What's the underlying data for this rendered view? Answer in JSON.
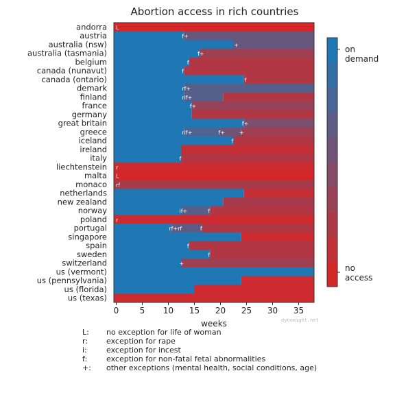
{
  "chart_data": {
    "type": "heatmap",
    "title": "Abortion access in rich countries",
    "xlabel": "weeks",
    "x_ticks": [
      0,
      5,
      10,
      15,
      20,
      25,
      30,
      35
    ],
    "xlim": [
      0,
      38.5
    ],
    "colorbar": {
      "top_label": "on demand",
      "bottom_label": "no access",
      "top_color": "#1f77b4",
      "bottom_color": "#d62728"
    },
    "rows": [
      {
        "country": "andorra",
        "segments": [
          {
            "from": 0,
            "to": 38.5,
            "level": 0
          }
        ],
        "marks": [
          {
            "at": 0,
            "text": "L"
          }
        ]
      },
      {
        "country": "austria",
        "segments": [
          {
            "from": 0,
            "to": 13,
            "level": 1
          },
          {
            "from": 13,
            "to": 38.5,
            "level": 0.6
          }
        ],
        "marks": [
          {
            "at": 13,
            "text": "f+"
          }
        ]
      },
      {
        "country": "australia (nsw)",
        "segments": [
          {
            "from": 0,
            "to": 22.5,
            "level": 1
          },
          {
            "from": 22.5,
            "to": 38.5,
            "level": 0.6
          }
        ],
        "marks": [
          {
            "at": 23,
            "text": "+"
          }
        ]
      },
      {
        "country": "australia (tasmania)",
        "segments": [
          {
            "from": 0,
            "to": 16,
            "level": 1
          },
          {
            "from": 16,
            "to": 38.5,
            "level": 0.3
          }
        ],
        "marks": [
          {
            "at": 16,
            "text": "f+"
          }
        ]
      },
      {
        "country": "belgium",
        "segments": [
          {
            "from": 0,
            "to": 14,
            "level": 1
          },
          {
            "from": 14,
            "to": 38.5,
            "level": 0.2
          }
        ],
        "marks": [
          {
            "at": 14,
            "text": "f"
          }
        ]
      },
      {
        "country": "canada (nunavut)",
        "segments": [
          {
            "from": 0,
            "to": 13,
            "level": 1
          },
          {
            "from": 13,
            "to": 38.5,
            "level": 0.2
          }
        ],
        "marks": [
          {
            "at": 13,
            "text": "f"
          }
        ]
      },
      {
        "country": "canada (ontario)",
        "segments": [
          {
            "from": 0,
            "to": 24.5,
            "level": 1
          },
          {
            "from": 24.5,
            "to": 38.5,
            "level": 0.2
          }
        ],
        "marks": [
          {
            "at": 25,
            "text": "f"
          }
        ]
      },
      {
        "country": "demark",
        "segments": [
          {
            "from": 0,
            "to": 13,
            "level": 1
          },
          {
            "from": 13,
            "to": 38.5,
            "level": 0.7
          }
        ],
        "marks": [
          {
            "at": 13,
            "text": "rf+"
          }
        ]
      },
      {
        "country": "finland",
        "segments": [
          {
            "from": 0,
            "to": 13,
            "level": 1
          },
          {
            "from": 13,
            "to": 20.5,
            "level": 0.7
          },
          {
            "from": 20.5,
            "to": 38.5,
            "level": 0.2
          }
        ],
        "marks": [
          {
            "at": 13,
            "text": "rif+"
          }
        ]
      },
      {
        "country": "france",
        "segments": [
          {
            "from": 0,
            "to": 14.5,
            "level": 1
          },
          {
            "from": 14.5,
            "to": 38.5,
            "level": 0.35
          }
        ],
        "marks": [
          {
            "at": 14.5,
            "text": "f+"
          }
        ]
      },
      {
        "country": "germany",
        "segments": [
          {
            "from": 0,
            "to": 14.5,
            "level": 1
          },
          {
            "from": 14.5,
            "to": 38.5,
            "level": 0.2
          }
        ],
        "marks": []
      },
      {
        "country": "great britain",
        "segments": [
          {
            "from": 0,
            "to": 24.5,
            "level": 1
          },
          {
            "from": 24.5,
            "to": 38.5,
            "level": 0.5
          }
        ],
        "marks": [
          {
            "at": 24.5,
            "text": "f+"
          }
        ]
      },
      {
        "country": "greece",
        "segments": [
          {
            "from": 0,
            "to": 13,
            "level": 1
          },
          {
            "from": 13,
            "to": 20,
            "level": 0.75
          },
          {
            "from": 20,
            "to": 24,
            "level": 0.55
          },
          {
            "from": 24,
            "to": 38.5,
            "level": 0.3
          }
        ],
        "marks": [
          {
            "at": 13,
            "text": "rif+"
          },
          {
            "at": 20,
            "text": "f+"
          },
          {
            "at": 24,
            "text": "+"
          }
        ]
      },
      {
        "country": "iceland",
        "segments": [
          {
            "from": 0,
            "to": 22.5,
            "level": 1
          },
          {
            "from": 22.5,
            "to": 38.5,
            "level": 0.2
          }
        ],
        "marks": [
          {
            "at": 22.5,
            "text": "f"
          }
        ]
      },
      {
        "country": "ireland",
        "segments": [
          {
            "from": 0,
            "to": 12.5,
            "level": 1
          },
          {
            "from": 12.5,
            "to": 38.5,
            "level": 0.1
          }
        ],
        "marks": []
      },
      {
        "country": "italy",
        "segments": [
          {
            "from": 0,
            "to": 12.5,
            "level": 1
          },
          {
            "from": 12.5,
            "to": 38.5,
            "level": 0.2
          }
        ],
        "marks": [
          {
            "at": 12.5,
            "text": "f"
          }
        ]
      },
      {
        "country": "liechtenstein",
        "segments": [
          {
            "from": 0,
            "to": 38.5,
            "level": 0.05
          }
        ],
        "marks": [
          {
            "at": 0,
            "text": "r"
          }
        ]
      },
      {
        "country": "malta",
        "segments": [
          {
            "from": 0,
            "to": 38.5,
            "level": 0
          }
        ],
        "marks": [
          {
            "at": 0,
            "text": "L"
          }
        ]
      },
      {
        "country": "monaco",
        "segments": [
          {
            "from": 0,
            "to": 38.5,
            "level": 0.25
          }
        ],
        "marks": [
          {
            "at": 0,
            "text": "rf"
          }
        ]
      },
      {
        "country": "netherlands",
        "segments": [
          {
            "from": 0,
            "to": 24.5,
            "level": 1
          },
          {
            "from": 24.5,
            "to": 38.5,
            "level": 0.1
          }
        ],
        "marks": []
      },
      {
        "country": "new zealand",
        "segments": [
          {
            "from": 0,
            "to": 20.5,
            "level": 1
          },
          {
            "from": 20.5,
            "to": 38.5,
            "level": 0.25
          }
        ],
        "marks": []
      },
      {
        "country": "norway",
        "segments": [
          {
            "from": 0,
            "to": 12.5,
            "level": 1
          },
          {
            "from": 12.5,
            "to": 18,
            "level": 0.7
          },
          {
            "from": 18,
            "to": 38.5,
            "level": 0.2
          }
        ],
        "marks": [
          {
            "at": 12.5,
            "text": "if+"
          },
          {
            "at": 18,
            "text": "f"
          }
        ]
      },
      {
        "country": "poland",
        "segments": [
          {
            "from": 0,
            "to": 38.5,
            "level": 0.05
          }
        ],
        "marks": [
          {
            "at": 0,
            "text": "r"
          }
        ]
      },
      {
        "country": "portugal",
        "segments": [
          {
            "from": 0,
            "to": 10.5,
            "level": 1
          },
          {
            "from": 10.5,
            "to": 16.5,
            "level": 0.65
          },
          {
            "from": 16.5,
            "to": 38.5,
            "level": 0.2
          }
        ],
        "marks": [
          {
            "at": 10.5,
            "text": "rf+rf"
          },
          {
            "at": 16.5,
            "text": "f"
          }
        ]
      },
      {
        "country": "singapore",
        "segments": [
          {
            "from": 0,
            "to": 24,
            "level": 1
          },
          {
            "from": 24,
            "to": 38.5,
            "level": 0.05
          }
        ],
        "marks": []
      },
      {
        "country": "spain",
        "segments": [
          {
            "from": 0,
            "to": 14,
            "level": 1
          },
          {
            "from": 14,
            "to": 38.5,
            "level": 0.2
          }
        ],
        "marks": [
          {
            "at": 14,
            "text": "f"
          }
        ]
      },
      {
        "country": "sweden",
        "segments": [
          {
            "from": 0,
            "to": 18,
            "level": 1
          },
          {
            "from": 18,
            "to": 38.5,
            "level": 0.2
          }
        ],
        "marks": [
          {
            "at": 18,
            "text": "f"
          }
        ]
      },
      {
        "country": "switzerland",
        "segments": [
          {
            "from": 0,
            "to": 12.5,
            "level": 1
          },
          {
            "from": 12.5,
            "to": 38.5,
            "level": 0.3
          }
        ],
        "marks": [
          {
            "at": 12.5,
            "text": "+"
          }
        ]
      },
      {
        "country": "us (vermont)",
        "segments": [
          {
            "from": 0,
            "to": 38.5,
            "level": 1
          }
        ],
        "marks": []
      },
      {
        "country": "us (pennsylvania)",
        "segments": [
          {
            "from": 0,
            "to": 24,
            "level": 1
          },
          {
            "from": 24,
            "to": 38.5,
            "level": 0.05
          }
        ],
        "marks": []
      },
      {
        "country": "us (florida)",
        "segments": [
          {
            "from": 0,
            "to": 15,
            "level": 1
          },
          {
            "from": 15,
            "to": 38.5,
            "level": 0.05
          }
        ],
        "marks": []
      },
      {
        "country": "us (texas)",
        "segments": [
          {
            "from": 0,
            "to": 38.5,
            "level": 0.05
          }
        ],
        "marks": []
      }
    ]
  },
  "legend": [
    {
      "key": "L:",
      "text": "no exception for life of woman"
    },
    {
      "key": "r:",
      "text": "exception for rape"
    },
    {
      "key": "i:",
      "text": "exception for incest"
    },
    {
      "key": "f:",
      "text": "exception for non-fatal fetal abnormalities"
    },
    {
      "key": "+:",
      "text": "other exceptions (mental health, social conditions, age)"
    }
  ],
  "watermark": "dynomight.net"
}
